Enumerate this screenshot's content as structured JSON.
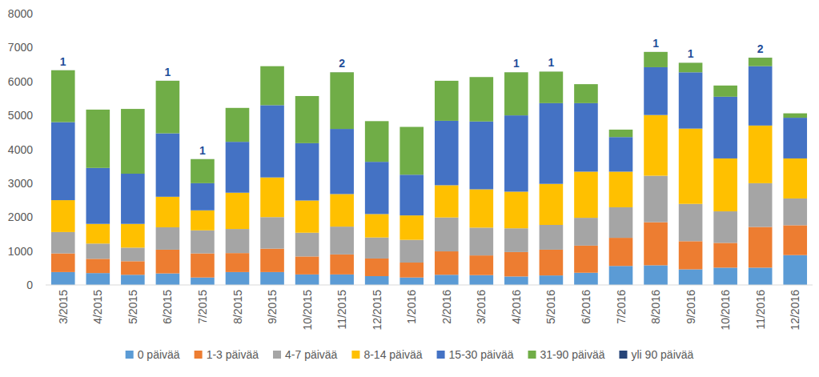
{
  "chart_data": {
    "type": "bar",
    "stacked": true,
    "grid": false,
    "legend": "bottom",
    "categories": [
      "3/2015",
      "4/2015",
      "5/2015",
      "6/2015",
      "7/2015",
      "8/2015",
      "9/2015",
      "10/2015",
      "11/2015",
      "12/2015",
      "1/2016",
      "2/2016",
      "3/2016",
      "4/2016",
      "5/2016",
      "6/2016",
      "7/2016",
      "8/2016",
      "9/2016",
      "10/2016",
      "11/2016",
      "12/2016"
    ],
    "ylim": [
      0,
      8000
    ],
    "yticks": [
      0,
      1000,
      2000,
      3000,
      4000,
      5000,
      6000,
      7000,
      8000
    ],
    "series": [
      {
        "name": "0 päivää",
        "color": "#5b9bd5",
        "values": [
          380,
          350,
          300,
          340,
          220,
          380,
          380,
          310,
          310,
          260,
          220,
          300,
          290,
          250,
          280,
          360,
          560,
          580,
          460,
          510,
          510,
          880
        ]
      },
      {
        "name": "1-3 päivää",
        "color": "#ed7d31",
        "values": [
          550,
          420,
          400,
          700,
          710,
          560,
          690,
          530,
          590,
          520,
          440,
          690,
          580,
          720,
          760,
          800,
          830,
          1270,
          830,
          730,
          1200,
          880
        ]
      },
      {
        "name": "4-7 päivää",
        "color": "#a5a5a5",
        "values": [
          630,
          450,
          400,
          660,
          680,
          710,
          930,
          700,
          820,
          620,
          670,
          1000,
          820,
          700,
          730,
          820,
          900,
          1370,
          1100,
          930,
          1290,
          790
        ]
      },
      {
        "name": "8-14 päivää",
        "color": "#ffc000",
        "values": [
          940,
          580,
          700,
          900,
          590,
          1070,
          1170,
          950,
          960,
          690,
          720,
          950,
          1130,
          1080,
          1210,
          1360,
          1050,
          1790,
          2220,
          1560,
          1700,
          1180
        ]
      },
      {
        "name": "15-30 päivää",
        "color": "#4472c4",
        "values": [
          2300,
          1650,
          1480,
          1870,
          800,
          1500,
          2130,
          1690,
          1920,
          1540,
          1200,
          1900,
          2000,
          2250,
          2380,
          2020,
          1020,
          1410,
          1660,
          1820,
          1750,
          1200
        ]
      },
      {
        "name": "31-90 päivää",
        "color": "#70ad47",
        "values": [
          1530,
          1720,
          1910,
          1550,
          710,
          1000,
          1150,
          1390,
          1670,
          1200,
          1410,
          1180,
          1310,
          1270,
          930,
          560,
          220,
          450,
          280,
          330,
          250,
          130
        ]
      },
      {
        "name": "yli 90 päivää",
        "color": "#264478",
        "data_labels": true,
        "values": [
          1,
          null,
          null,
          1,
          1,
          null,
          null,
          null,
          2,
          null,
          null,
          null,
          null,
          1,
          1,
          null,
          null,
          1,
          1,
          null,
          2,
          null
        ]
      }
    ]
  }
}
